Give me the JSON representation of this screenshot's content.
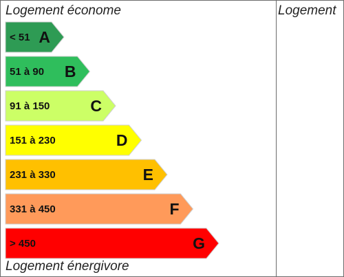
{
  "header": {
    "top_label": "Logement économe",
    "bottom_label": "Logement énergivore",
    "column_header": "Logement"
  },
  "classes": [
    {
      "range": "< 51",
      "letter": "A",
      "color": "#2e9b54"
    },
    {
      "range": "51 à 90",
      "letter": "B",
      "color": "#2fbe5c"
    },
    {
      "range": "91 à 150",
      "letter": "C",
      "color": "#ccff66"
    },
    {
      "range": "151 à 230",
      "letter": "D",
      "color": "#ffff00"
    },
    {
      "range": "231 à 330",
      "letter": "E",
      "color": "#ffc000"
    },
    {
      "range": "331 à 450",
      "letter": "F",
      "color": "#ff9a5a"
    },
    {
      "range": "> 450",
      "letter": "G",
      "color": "#ff0000"
    }
  ]
}
